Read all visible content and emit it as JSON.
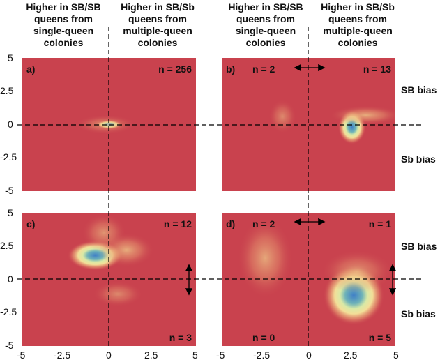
{
  "headers": [
    {
      "id": "h1",
      "text": "Higher in SB/SB\nqueens from\nsingle-queen\ncolonies"
    },
    {
      "id": "h2",
      "text": "Higher in SB/Sb\nqueens from\nmultiple-queen\ncolonies"
    },
    {
      "id": "h3",
      "text": "Higher in SB/SB\nqueens from\nsingle-queen\ncolonies"
    },
    {
      "id": "h4",
      "text": "Higher in SB/Sb\nqueens from\nmultiple-queen\ncolonies"
    }
  ],
  "bias_labels": {
    "sb_top": "SB bias",
    "sb_bottom": "Sb bias",
    "sb_top2": "SB bias",
    "sb_bottom2": "Sb bias"
  },
  "colors": {
    "background": "#c9424e",
    "peak": "#3f7fc7",
    "mid": "#f5e79c",
    "axis": "#000000"
  },
  "chart_data": [
    {
      "type": "heatmap",
      "panel": "a",
      "labels": {
        "letter": "a)",
        "top_right": "n = 256"
      },
      "xlim": [
        -5,
        5
      ],
      "ylim": [
        -5,
        5
      ],
      "blobs": [
        {
          "x": 0,
          "y": 0,
          "sx": 0.45,
          "sy": 0.2,
          "peak": 1.0
        },
        {
          "x": -0.2,
          "y": 0,
          "sx": 1.1,
          "sy": 0.45,
          "peak": 0.35
        }
      ]
    },
    {
      "type": "heatmap",
      "panel": "b",
      "labels": {
        "letter": "b)",
        "top_left": "n = 2",
        "top_right": "n = 13"
      },
      "xlim": [
        -5,
        5
      ],
      "ylim": [
        -5,
        5
      ],
      "blobs": [
        {
          "x": 2.5,
          "y": -0.2,
          "sx": 0.5,
          "sy": 0.8,
          "peak": 1.0
        },
        {
          "x": 3.3,
          "y": 0.7,
          "sx": 1.3,
          "sy": 0.45,
          "peak": 0.45
        },
        {
          "x": -1.5,
          "y": 0.6,
          "sx": 0.5,
          "sy": 0.8,
          "peak": 0.3
        }
      ]
    },
    {
      "type": "heatmap",
      "panel": "c",
      "labels": {
        "letter": "c)",
        "top_right": "n = 12",
        "bottom_right": "n = 3"
      },
      "xlim": [
        -5,
        5
      ],
      "ylim": [
        -5,
        5
      ],
      "blobs": [
        {
          "x": -0.8,
          "y": 1.8,
          "sx": 1.0,
          "sy": 0.7,
          "peak": 1.0
        },
        {
          "x": 1.0,
          "y": 2.2,
          "sx": 1.0,
          "sy": 0.8,
          "peak": 0.45
        },
        {
          "x": -0.3,
          "y": 3.5,
          "sx": 0.8,
          "sy": 0.9,
          "peak": 0.35
        },
        {
          "x": 0.5,
          "y": -1.1,
          "sx": 0.9,
          "sy": 0.6,
          "peak": 0.3
        }
      ]
    },
    {
      "type": "heatmap",
      "panel": "d",
      "labels": {
        "letter": "d)",
        "top_left": "n = 2",
        "top_right": "n = 1",
        "bottom_left": "n = 0",
        "bottom_right": "n = 5"
      },
      "xlim": [
        -5,
        5
      ],
      "ylim": [
        -5,
        5
      ],
      "blobs": [
        {
          "x": 2.6,
          "y": -1.2,
          "sx": 1.1,
          "sy": 1.4,
          "peak": 1.0
        },
        {
          "x": -2.5,
          "y": 1.6,
          "sx": 1.0,
          "sy": 1.9,
          "peak": 0.42
        },
        {
          "x": 2.8,
          "y": 0.6,
          "sx": 1.3,
          "sy": 1.0,
          "peak": 0.35
        }
      ]
    }
  ],
  "axes": {
    "y_ticks": [
      "5",
      "2.5",
      "0",
      "-2.5",
      "-5"
    ],
    "x_ticks": [
      "-5",
      "-2.5",
      "0",
      "2.5",
      "5"
    ]
  }
}
